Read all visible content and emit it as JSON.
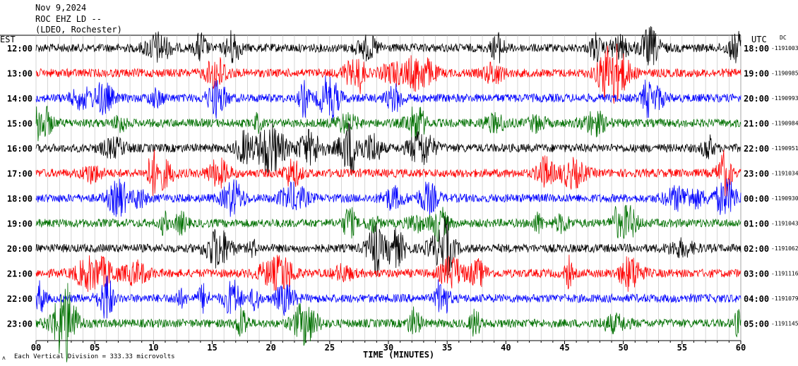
{
  "header": {
    "date": "Nov 9,2024",
    "station": "ROC EHZ LD --",
    "network": "(LDEO, Rochester)",
    "left_tz": "EST",
    "right_tz": "UTC",
    "dc_label": "DC"
  },
  "footer": {
    "scale_note": "Each Vertical Division =  333.33 microvolts",
    "mark": "ʌ"
  },
  "chart_data": {
    "type": "line",
    "title": "ROC EHZ LD -- (LDEO, Rochester) Nov 9,2024",
    "xlabel": "TIME (MINUTES)",
    "xlim": [
      0,
      60
    ],
    "x_ticks": [
      "00",
      "05",
      "10",
      "15",
      "20",
      "25",
      "30",
      "35",
      "40",
      "45",
      "50",
      "55",
      "60"
    ],
    "grid": true,
    "colors": [
      "#000000",
      "#ff0000",
      "#0000ff",
      "#007000"
    ],
    "rows": [
      {
        "est": "12:00",
        "utc": "18:00",
        "dc": "-1191003"
      },
      {
        "est": "13:00",
        "utc": "19:00",
        "dc": "-1190985"
      },
      {
        "est": "14:00",
        "utc": "20:00",
        "dc": "-1190993"
      },
      {
        "est": "15:00",
        "utc": "21:00",
        "dc": "-1190984"
      },
      {
        "est": "16:00",
        "utc": "22:00",
        "dc": "-1190951"
      },
      {
        "est": "17:00",
        "utc": "23:00",
        "dc": "-1191034"
      },
      {
        "est": "18:00",
        "utc": "00:00",
        "dc": "-1190930"
      },
      {
        "est": "19:00",
        "utc": "01:00",
        "dc": "-1191043"
      },
      {
        "est": "20:00",
        "utc": "02:00",
        "dc": "-1191062"
      },
      {
        "est": "21:00",
        "utc": "03:00",
        "dc": "-1191116"
      },
      {
        "est": "22:00",
        "utc": "04:00",
        "dc": "-1191079"
      },
      {
        "est": "23:00",
        "utc": "05:00",
        "dc": "-1191145"
      }
    ]
  }
}
